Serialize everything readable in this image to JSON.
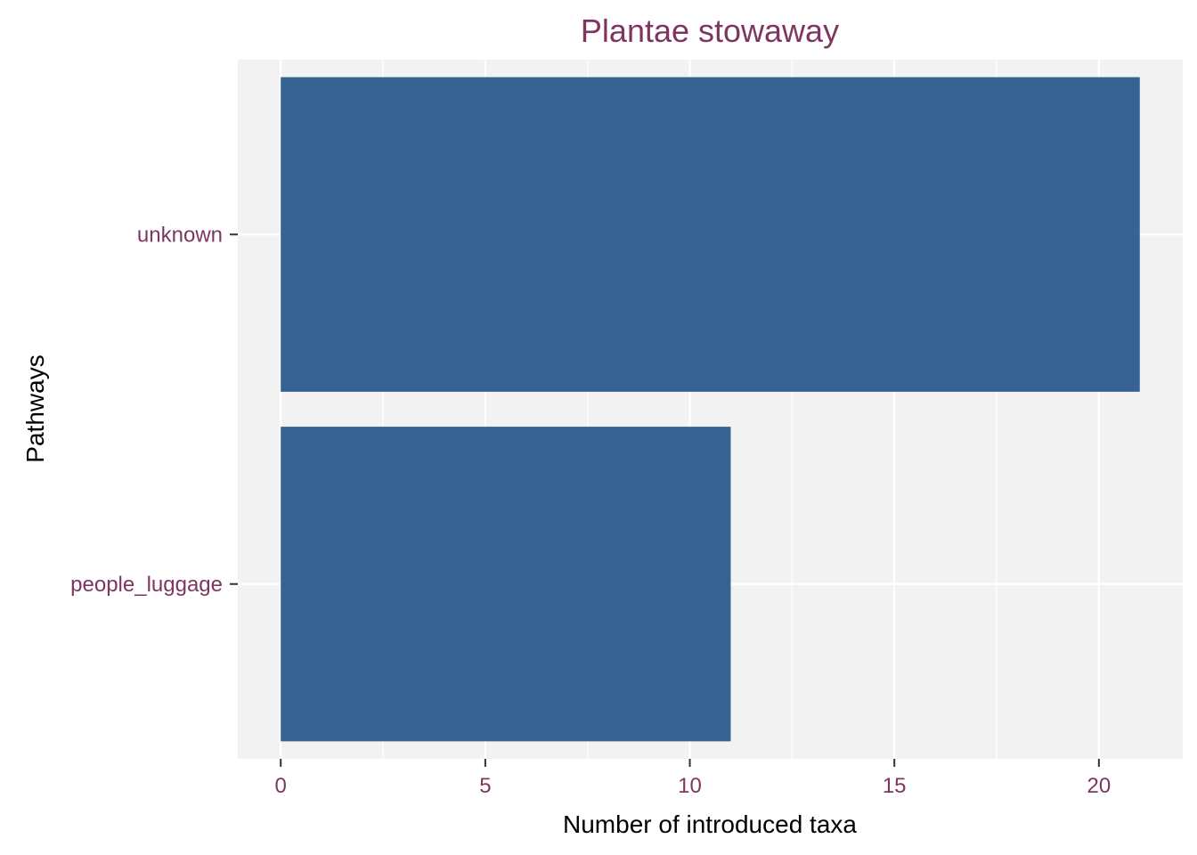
{
  "chart_data": {
    "type": "bar",
    "orientation": "horizontal",
    "title": "Plantae stowaway",
    "xlabel": "Number of introduced taxa",
    "ylabel": "Pathways",
    "categories": [
      "people_luggage",
      "unknown"
    ],
    "values": [
      11,
      21
    ],
    "xlim": [
      -1.05,
      22.05
    ],
    "xticks": [
      0,
      5,
      10,
      15,
      20
    ],
    "grid": true,
    "legend": "none",
    "colors": {
      "bar": "#366294",
      "panel": "#f2f2f2",
      "grid": "#ffffff",
      "title": "#7e3660",
      "tick_label": "#7e3660",
      "axis_label": "#000000"
    }
  }
}
